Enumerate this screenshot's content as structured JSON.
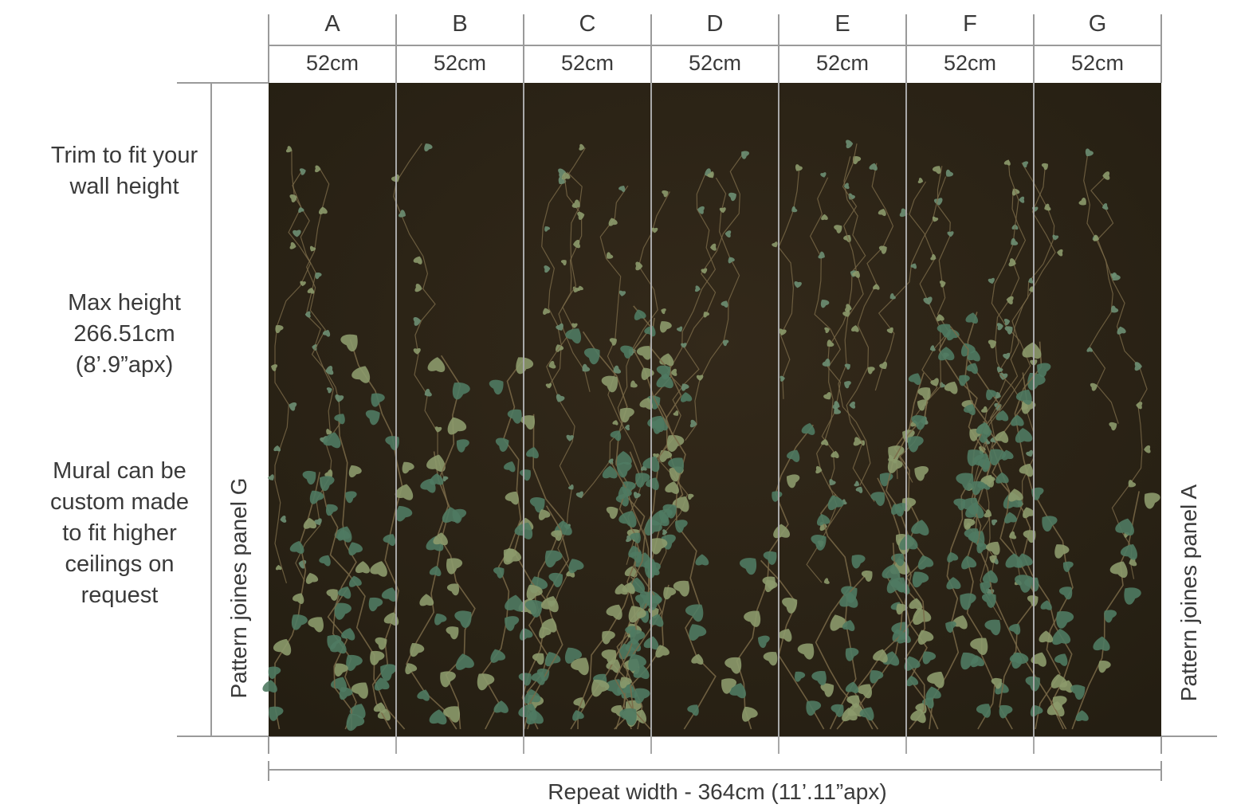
{
  "panels": [
    {
      "letter": "A",
      "width": "52cm"
    },
    {
      "letter": "B",
      "width": "52cm"
    },
    {
      "letter": "C",
      "width": "52cm"
    },
    {
      "letter": "D",
      "width": "52cm"
    },
    {
      "letter": "E",
      "width": "52cm"
    },
    {
      "letter": "F",
      "width": "52cm"
    },
    {
      "letter": "G",
      "width": "52cm"
    }
  ],
  "notes": {
    "trim": [
      "Trim to fit your",
      "wall height"
    ],
    "max_height": [
      "Max height",
      "266.51cm",
      "(8’.9”apx)"
    ],
    "custom": [
      "Mural can be",
      "custom made",
      "to fit higher",
      "ceilings on",
      "request"
    ]
  },
  "left_vertical": "Pattern joines panel G",
  "right_vertical": "Pattern joines panel A",
  "repeat_width": "Repeat width - 364cm  (11’.11”apx)",
  "colors": {
    "mural_background": "#2b2416",
    "leaf_green": "#4f7a62",
    "leaf_light": "#8c9a6b",
    "vine": "#7a6a48",
    "guide_line": "#9a9a9a",
    "text": "#3a3a3a"
  }
}
